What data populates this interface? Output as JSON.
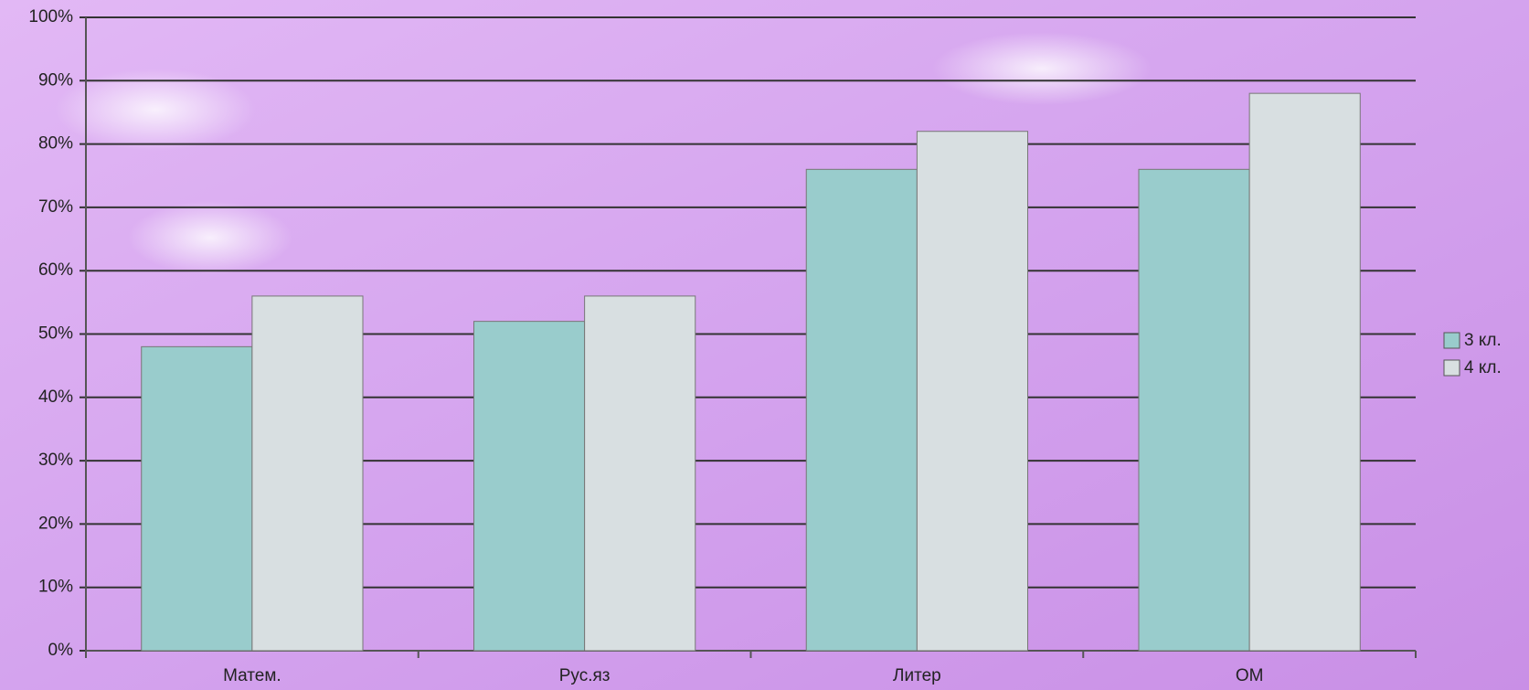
{
  "chart_data": {
    "type": "bar",
    "categories": [
      "Матем.",
      "Рус.яз",
      "Литер",
      "ОМ"
    ],
    "series": [
      {
        "name": "3 кл.",
        "color": "#99cccc",
        "values": [
          48,
          52,
          76,
          76
        ]
      },
      {
        "name": "4 кл.",
        "color": "#d8dfe1",
        "values": [
          56,
          56,
          82,
          88
        ]
      }
    ],
    "ylim": [
      0,
      100
    ],
    "yticks": [
      {
        "value": 0,
        "label": "0%"
      },
      {
        "value": 10,
        "label": "10%"
      },
      {
        "value": 20,
        "label": "20%"
      },
      {
        "value": 30,
        "label": "30%"
      },
      {
        "value": 40,
        "label": "40%"
      },
      {
        "value": 50,
        "label": "50%"
      },
      {
        "value": 60,
        "label": "60%"
      },
      {
        "value": 70,
        "label": "70%"
      },
      {
        "value": 80,
        "label": "80%"
      },
      {
        "value": 90,
        "label": "90%"
      },
      {
        "value": 100,
        "label": "100%"
      }
    ],
    "grid": true,
    "legend": "right"
  }
}
